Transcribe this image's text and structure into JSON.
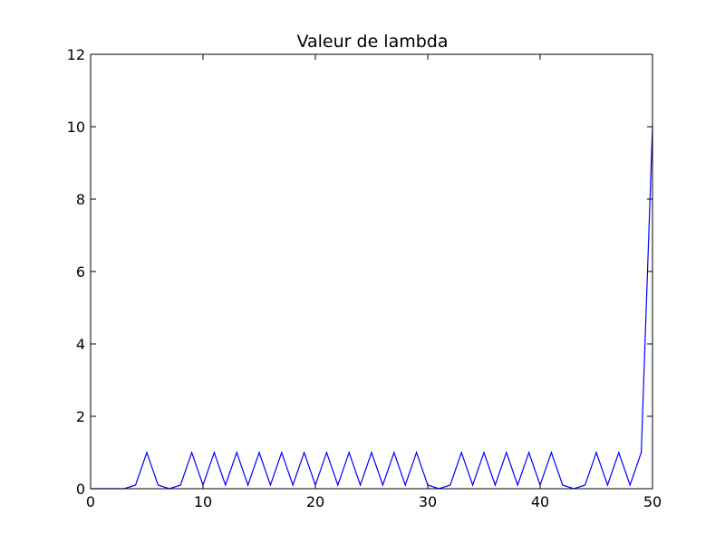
{
  "chart_data": {
    "type": "line",
    "title": "Valeur de lambda",
    "xlabel": "",
    "ylabel": "",
    "xlim": [
      0,
      50
    ],
    "ylim": [
      0,
      12
    ],
    "x_ticks": [
      0,
      10,
      20,
      30,
      40,
      50
    ],
    "y_ticks": [
      0,
      2,
      4,
      6,
      8,
      10,
      12
    ],
    "grid": false,
    "line_color": "#0000ff",
    "series": [
      {
        "x": [
          0,
          1,
          2,
          3,
          4,
          5,
          6,
          7,
          8,
          9,
          10,
          11,
          12,
          13,
          14,
          15,
          16,
          17,
          18,
          19,
          20,
          21,
          22,
          23,
          24,
          25,
          26,
          27,
          28,
          29,
          30,
          31,
          32,
          33,
          34,
          35,
          36,
          37,
          38,
          39,
          40,
          41,
          42,
          43,
          44,
          45,
          46,
          47,
          48,
          49,
          50
        ],
        "values": [
          0,
          0,
          0,
          0,
          0.1,
          1,
          0.1,
          0,
          0.1,
          1,
          0.1,
          1,
          0.1,
          1,
          0.1,
          1,
          0.1,
          1,
          0.1,
          1,
          0.1,
          1,
          0.1,
          1,
          0.1,
          1,
          0.1,
          1,
          0.1,
          1,
          0.1,
          0,
          0.1,
          1,
          0.1,
          1,
          0.1,
          1,
          0.1,
          1,
          0.1,
          1,
          0.1,
          0,
          0.1,
          1,
          0.1,
          1,
          0.1,
          1,
          10
        ]
      }
    ]
  }
}
